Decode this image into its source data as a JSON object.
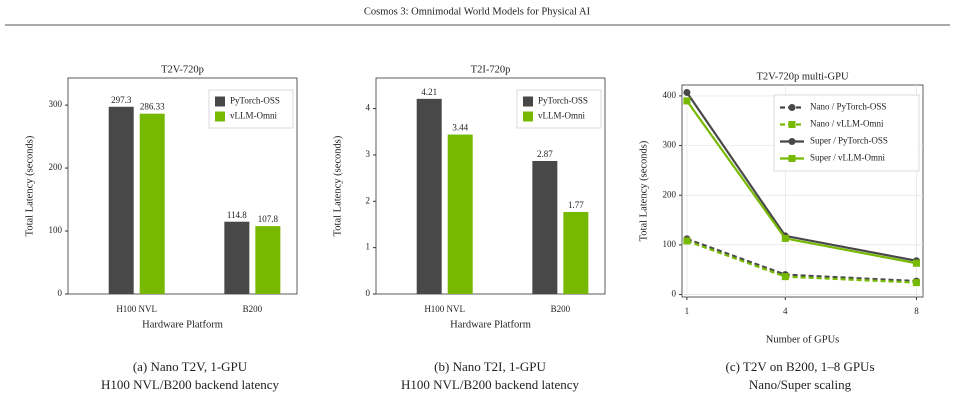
{
  "header": {
    "title": "Cosmos 3: Omnimodal World Models for Physical AI"
  },
  "captions": [
    [
      "(a) Nano T2V, 1-GPU",
      "H100 NVL/B200 backend latency"
    ],
    [
      "(b) Nano T2I, 1-GPU",
      "H100 NVL/B200 backend latency"
    ],
    [
      "(c) T2V on B200, 1–8 GPUs",
      "Nano/Super scaling"
    ]
  ],
  "chart_data": [
    {
      "type": "bar",
      "title": "T2V-720p",
      "x_label": "Hardware Platform",
      "y_label": "Total Latency (seconds)",
      "categories": [
        "H100 NVL",
        "B200"
      ],
      "series": [
        {
          "name": "PyTorch-OSS",
          "color": "#484848",
          "values": [
            297.3,
            114.8
          ]
        },
        {
          "name": "vLLM-Omni",
          "color": "#76b900",
          "values": [
            286.33,
            107.8
          ]
        }
      ],
      "ylim": [
        0,
        343
      ],
      "yticks": [
        0,
        100,
        200,
        300
      ],
      "legend": "upper right",
      "grid": false
    },
    {
      "type": "bar",
      "title": "T2I-720p",
      "x_label": "Hardware Platform",
      "y_label": "Total Latency (seconds)",
      "categories": [
        "H100 NVL",
        "B200"
      ],
      "series": [
        {
          "name": "PyTorch-OSS",
          "color": "#484848",
          "values": [
            4.21,
            2.87
          ]
        },
        {
          "name": "vLLM-Omni",
          "color": "#76b900",
          "values": [
            3.44,
            1.77
          ]
        }
      ],
      "ylim": [
        0,
        4.66
      ],
      "yticks": [
        0,
        1,
        2,
        3,
        4
      ],
      "legend": "upper right",
      "grid": false
    },
    {
      "type": "line",
      "title": "T2V-720p multi-GPU",
      "x_label": "Number of GPUs",
      "y_label": "Total Latency (seconds)",
      "x": [
        1,
        4,
        8
      ],
      "series": [
        {
          "name": "Nano / PyTorch-OSS",
          "color": "#484848",
          "linestyle": "dashed",
          "marker": "circle",
          "values": [
            112,
            40,
            27
          ]
        },
        {
          "name": "Nano / vLLM-Omni",
          "color": "#76b900",
          "linestyle": "dashed",
          "marker": "square",
          "values": [
            108,
            36,
            24
          ]
        },
        {
          "name": "Super / PyTorch-OSS",
          "color": "#484848",
          "linestyle": "solid",
          "marker": "circle",
          "values": [
            407,
            118,
            68
          ]
        },
        {
          "name": "Super / vLLM-Omni",
          "color": "#76b900",
          "linestyle": "solid",
          "marker": "square",
          "values": [
            390,
            113,
            63
          ]
        }
      ],
      "xlim": [
        0.85,
        8.2
      ],
      "xticks": [
        1,
        4,
        8
      ],
      "ylim": [
        -5,
        422
      ],
      "yticks": [
        0,
        100,
        200,
        300,
        400
      ],
      "legend": "upper right",
      "grid": true
    }
  ]
}
